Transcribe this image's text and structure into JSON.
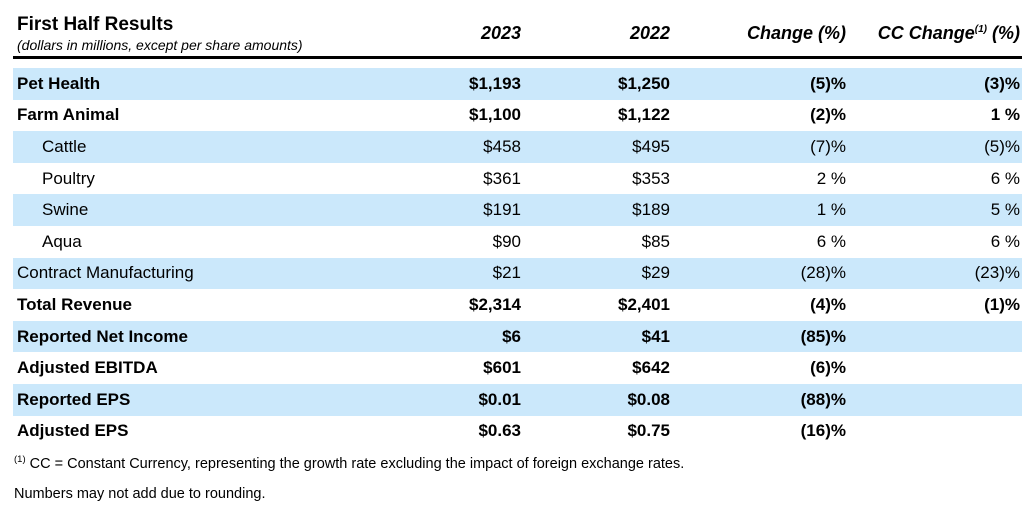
{
  "colors": {
    "row_shade": "#cbe8fb",
    "rule": "#000000",
    "text": "#000000"
  },
  "header": {
    "title": "First Half Results",
    "subtitle": "(dollars in millions, except per share amounts)",
    "columns": [
      "2023",
      "2022",
      "Change (%)"
    ],
    "cc": {
      "label": "CC Change",
      "superscript": "(1)",
      "suffix": " (%)"
    }
  },
  "rows": [
    {
      "label": "Pet Health",
      "y2023": "$1,193",
      "y2022": "$1,250",
      "change": "(5)%",
      "cc_change": "(3)%",
      "bold": true,
      "indent": false,
      "shaded": true
    },
    {
      "label": "Farm Animal",
      "y2023": "$1,100",
      "y2022": "$1,122",
      "change": "(2)%",
      "cc_change": "1 %",
      "bold": true,
      "indent": false,
      "shaded": false
    },
    {
      "label": "Cattle",
      "y2023": "$458",
      "y2022": "$495",
      "change": "(7)%",
      "cc_change": "(5)%",
      "bold": false,
      "indent": true,
      "shaded": true
    },
    {
      "label": "Poultry",
      "y2023": "$361",
      "y2022": "$353",
      "change": "2 %",
      "cc_change": "6 %",
      "bold": false,
      "indent": true,
      "shaded": false
    },
    {
      "label": "Swine",
      "y2023": "$191",
      "y2022": "$189",
      "change": "1 %",
      "cc_change": "5 %",
      "bold": false,
      "indent": true,
      "shaded": true
    },
    {
      "label": "Aqua",
      "y2023": "$90",
      "y2022": "$85",
      "change": "6 %",
      "cc_change": "6 %",
      "bold": false,
      "indent": true,
      "shaded": false
    },
    {
      "label": "Contract Manufacturing",
      "y2023": "$21",
      "y2022": "$29",
      "change": "(28)%",
      "cc_change": "(23)%",
      "bold": false,
      "indent": false,
      "shaded": true
    },
    {
      "label": "Total Revenue",
      "y2023": "$2,314",
      "y2022": "$2,401",
      "change": "(4)%",
      "cc_change": "(1)%",
      "bold": true,
      "indent": false,
      "shaded": false
    },
    {
      "label": "Reported Net Income",
      "y2023": "$6",
      "y2022": "$41",
      "change": "(85)%",
      "cc_change": "",
      "bold": true,
      "indent": false,
      "shaded": true
    },
    {
      "label": "Adjusted EBITDA",
      "y2023": "$601",
      "y2022": "$642",
      "change": "(6)%",
      "cc_change": "",
      "bold": true,
      "indent": false,
      "shaded": false
    },
    {
      "label": "Reported EPS",
      "y2023": "$0.01",
      "y2022": "$0.08",
      "change": "(88)%",
      "cc_change": "",
      "bold": true,
      "indent": false,
      "shaded": true
    },
    {
      "label": "Adjusted EPS",
      "y2023": "$0.63",
      "y2022": "$0.75",
      "change": "(16)%",
      "cc_change": "",
      "bold": true,
      "indent": false,
      "shaded": false
    }
  ],
  "footnotes": [
    {
      "superscript": "(1)",
      "text": "CC = Constant Currency, representing the growth rate excluding the impact of foreign exchange rates."
    },
    {
      "superscript": "",
      "text": "Numbers may not add due to rounding."
    }
  ]
}
